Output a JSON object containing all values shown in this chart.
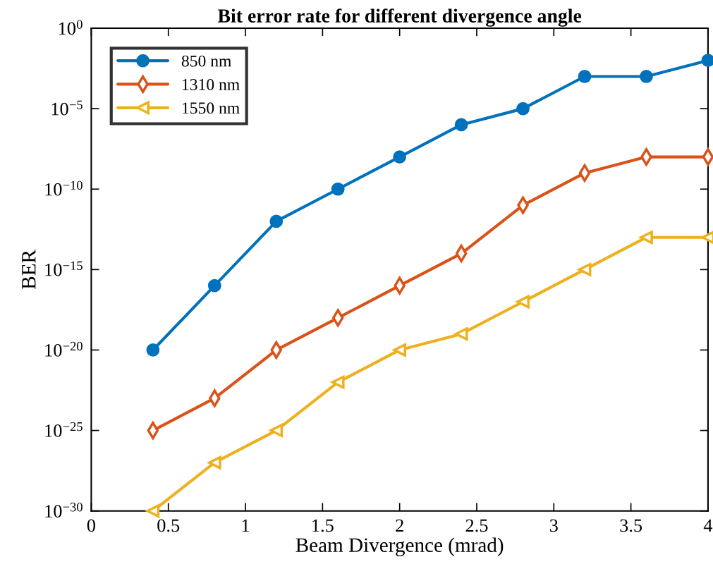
{
  "chart_data": {
    "type": "line",
    "title": "Bit error rate for different divergence angle",
    "xlabel": "Beam Divergence (mrad)",
    "ylabel": "BER",
    "x": [
      0.4,
      0.8,
      1.2,
      1.6,
      2.0,
      2.4,
      2.8,
      3.2,
      3.6,
      4.0
    ],
    "series": [
      {
        "name": "850 nm",
        "color": "#0072bd",
        "marker": "circle",
        "values": [
          1e-20,
          1e-16,
          1e-12,
          1e-10,
          1e-08,
          1e-06,
          1e-05,
          0.001,
          0.001,
          0.01
        ]
      },
      {
        "name": "1310 nm",
        "color": "#d95319",
        "marker": "diamond",
        "values": [
          1e-25,
          1e-23,
          1e-20,
          1e-18,
          1e-16,
          1e-14,
          1e-11,
          1e-09,
          1e-08,
          1e-08
        ]
      },
      {
        "name": "1550 nm",
        "color": "#edb120",
        "marker": "triangle",
        "values": [
          1e-30,
          1e-27,
          1e-25,
          1e-22,
          1e-20,
          1e-19,
          1e-17,
          1e-15,
          1e-13,
          1e-13
        ]
      }
    ],
    "log": "y",
    "xlim": [
      0,
      4
    ],
    "ylim": [
      1e-30,
      1
    ],
    "xticks": [
      0,
      0.5,
      1,
      1.5,
      2,
      2.5,
      3,
      3.5,
      4
    ],
    "yticks": [
      {
        "value": 1e-30,
        "label": "10$^{−30}$"
      },
      {
        "value": 1e-25,
        "label": "10$^{−25}$"
      },
      {
        "value": 1e-20,
        "label": "10$^{−20}$"
      },
      {
        "value": 1e-15,
        "label": "10$^{−15}$"
      },
      {
        "value": 1e-10,
        "label": "10$^{−10}$"
      },
      {
        "value": 1e-05,
        "label": "10$^{−5}$"
      },
      {
        "value": 1,
        "label": "10$^{0}$"
      }
    ],
    "grid": false,
    "legend": "top left",
    "line_style": "solid"
  }
}
